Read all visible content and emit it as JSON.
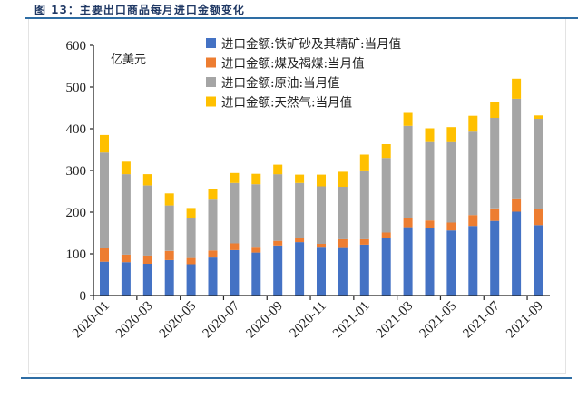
{
  "figure": {
    "title": "图 13：主要出口商品每月进口金额变化"
  },
  "chart_data": {
    "type": "bar",
    "stacked": true,
    "title": "图 13：主要出口商品每月进口金额变化",
    "unit_label": "亿美元",
    "xlabel": "",
    "ylabel": "亿美元",
    "ylim": [
      0,
      600
    ],
    "yticks": [
      0,
      100,
      200,
      300,
      400,
      500,
      600
    ],
    "grid": false,
    "legend_position": "top-center",
    "categories": [
      "2020-01",
      "2020-02",
      "2020-03",
      "2020-04",
      "2020-05",
      "2020-06",
      "2020-07",
      "2020-08",
      "2020-09",
      "2020-10",
      "2020-11",
      "2020-12",
      "2021-01",
      "2021-02",
      "2021-03",
      "2021-04",
      "2021-05",
      "2021-06",
      "2021-07",
      "2021-08",
      "2021-09"
    ],
    "xtick_labels": [
      "2020-01",
      "2020-03",
      "2020-05",
      "2020-07",
      "2020-09",
      "2020-11",
      "2021-01",
      "2021-03",
      "2021-05",
      "2021-07",
      "2021-09"
    ],
    "series": [
      {
        "name": "进口金额:铁矿砂及其精矿:当月值",
        "color": "#4472C4",
        "values": [
          81,
          80,
          76,
          85,
          75,
          91,
          109,
          103,
          120,
          128,
          117,
          116,
          122,
          138,
          164,
          161,
          156,
          167,
          179,
          201,
          169
        ]
      },
      {
        "name": "进口金额:煤及褐煤:当月值",
        "color": "#ED7D31",
        "values": [
          32,
          18,
          20,
          22,
          15,
          17,
          16,
          14,
          11,
          9,
          7,
          19,
          13,
          13,
          21,
          19,
          19,
          26,
          30,
          32,
          38
        ]
      },
      {
        "name": "进口金额:原油:当月值",
        "color": "#A5A5A5",
        "values": [
          230,
          193,
          168,
          109,
          95,
          122,
          145,
          150,
          160,
          133,
          138,
          126,
          163,
          179,
          222,
          188,
          193,
          200,
          217,
          239,
          217
        ]
      },
      {
        "name": "进口金额:天然气:当月值",
        "color": "#FFC000",
        "values": [
          42,
          30,
          27,
          29,
          25,
          26,
          24,
          25,
          23,
          20,
          28,
          36,
          40,
          33,
          31,
          33,
          36,
          38,
          39,
          48,
          8
        ]
      }
    ]
  }
}
